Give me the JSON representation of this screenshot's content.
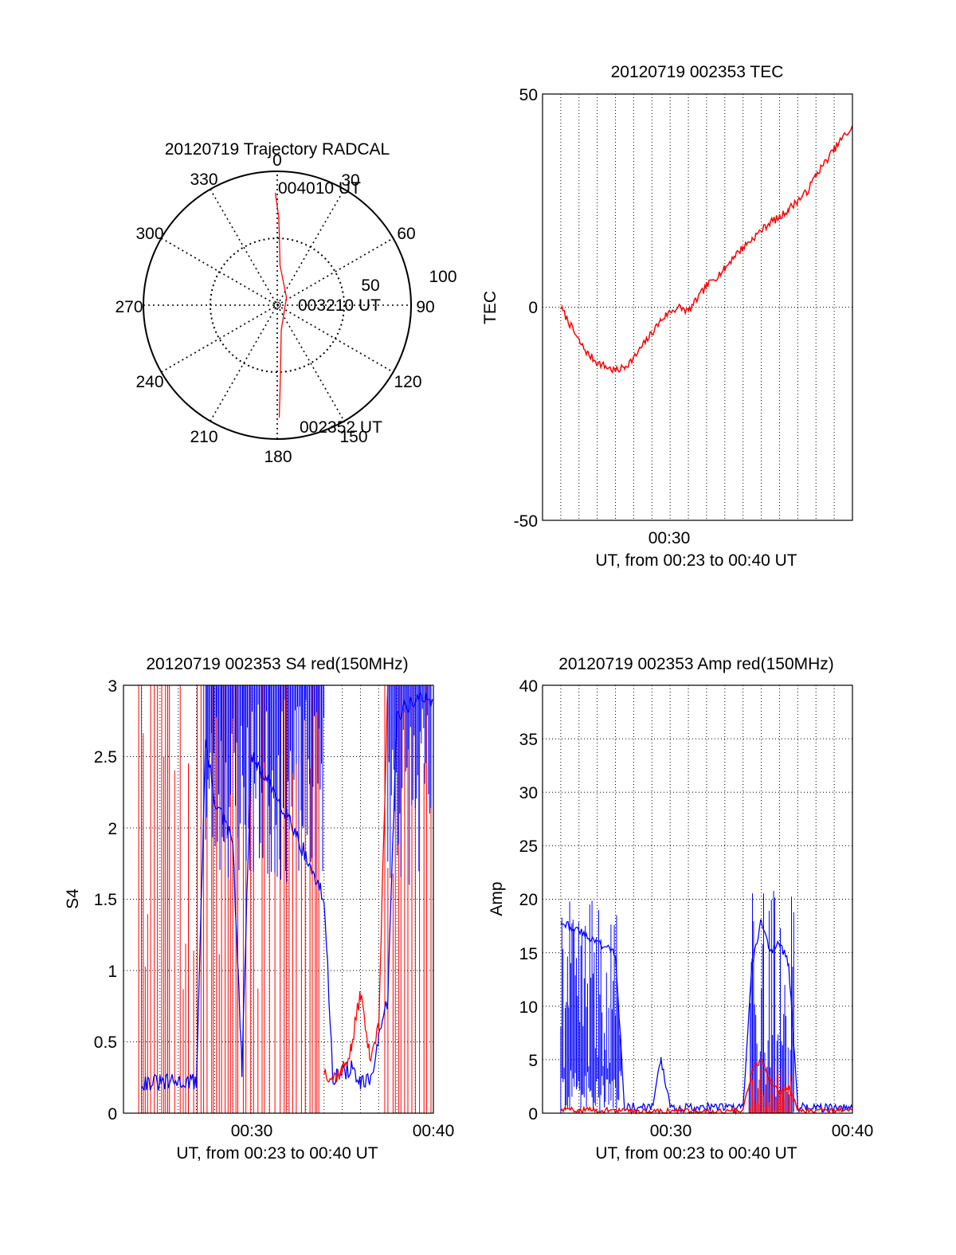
{
  "figure": {
    "background": "#ffffff",
    "red": "#ff0000",
    "blue": "#0000ff"
  },
  "chart_data": [
    {
      "type": "polar",
      "title": "20120719 Trajectory RADCAL",
      "angle_labels": [
        "0",
        "30",
        "60",
        "90",
        "120",
        "150",
        "180",
        "210",
        "240",
        "270",
        "300",
        "330"
      ],
      "radius_labels": [
        "50",
        "100"
      ],
      "start_label": "002352 UT",
      "mid_label": "003210 UT",
      "end_label": "004010 UT",
      "track": {
        "series_color": "#ff0000",
        "points": [
          {
            "az": 179,
            "r": 84
          },
          {
            "az": 178,
            "r": 62
          },
          {
            "az": 176,
            "r": 38
          },
          {
            "az": 171,
            "r": 19
          },
          {
            "az": 50,
            "r": 9
          },
          {
            "az": 4,
            "r": 30
          },
          {
            "az": 2,
            "r": 48
          },
          {
            "az": 1,
            "r": 66
          },
          {
            "az": 359,
            "r": 84
          }
        ]
      }
    },
    {
      "type": "line",
      "title": "20120719 002353 TEC",
      "ylabel": "TEC",
      "xlabel": "UT, from 00:23 to 00:40 UT",
      "xtick_labels": [
        "00:30"
      ],
      "ytick_labels": [
        "-50",
        "0",
        "50"
      ],
      "xlim": [
        "00:23:00",
        "00:40:00"
      ],
      "ylim": [
        -50,
        50
      ],
      "series": [
        {
          "color": "#ff0000",
          "x": [
            "00:24:00",
            "00:24:30",
            "00:25:00",
            "00:25:30",
            "00:26:00",
            "00:26:30",
            "00:27:00",
            "00:27:30",
            "00:28:00",
            "00:28:30",
            "00:29:00",
            "00:29:30",
            "00:30:00",
            "00:30:30",
            "00:31:00",
            "00:31:30",
            "00:32:00",
            "00:32:30",
            "00:33:00",
            "00:33:30",
            "00:34:00",
            "00:34:30",
            "00:35:00",
            "00:35:30",
            "00:36:00",
            "00:36:30",
            "00:37:00",
            "00:37:30",
            "00:38:00",
            "00:38:30",
            "00:39:00",
            "00:39:30",
            "00:40:00"
          ],
          "values": [
            0,
            -4,
            -8,
            -11,
            -13,
            -14,
            -15,
            -14,
            -12,
            -9,
            -6,
            -3,
            -1,
            0,
            -1,
            2,
            5,
            7,
            9,
            12,
            14,
            16,
            18,
            20,
            21,
            23,
            25,
            27,
            31,
            34,
            37,
            40,
            42
          ]
        }
      ]
    },
    {
      "type": "line",
      "title": "20120719 002353 S4 red(150MHz)",
      "ylabel": "S4",
      "xlabel": "UT, from 00:23 to 00:40 UT",
      "xtick_labels": [
        "00:30",
        "00:40"
      ],
      "ytick_labels": [
        "0",
        "0.5",
        "1",
        "1.5",
        "2",
        "2.5",
        "3"
      ],
      "xlim": [
        "00:23:00",
        "00:40:00"
      ],
      "ylim": [
        0,
        3
      ],
      "series": [
        {
          "color": "#0000ff",
          "x": [
            "00:24:00",
            "00:25:00",
            "00:26:00",
            "00:27:00",
            "00:27:30",
            "00:28:00",
            "00:29:00",
            "00:29:30",
            "00:30:00",
            "00:31:00",
            "00:32:00",
            "00:33:00",
            "00:34:00",
            "00:34:30",
            "00:35:00",
            "00:35:30",
            "00:36:00",
            "00:36:30",
            "00:37:00",
            "00:37:30",
            "00:38:00",
            "00:39:00",
            "00:40:00"
          ],
          "values": [
            0.22,
            0.21,
            0.22,
            0.22,
            2.6,
            2.2,
            1.9,
            0.3,
            2.5,
            2.3,
            2.1,
            1.8,
            1.5,
            0.25,
            0.28,
            0.32,
            0.2,
            0.22,
            0.5,
            0.8,
            2.8,
            2.9,
            2.9
          ]
        },
        {
          "color": "#ff0000",
          "x": [
            "00:34:00",
            "00:34:30",
            "00:35:00",
            "00:35:30",
            "00:36:00",
            "00:36:30",
            "00:37:00",
            "00:37:30"
          ],
          "values": [
            0.3,
            0.25,
            0.3,
            0.45,
            0.85,
            0.4,
            0.6,
            3.0
          ]
        }
      ]
    },
    {
      "type": "line",
      "title": "20120719 002353 Amp red(150MHz)",
      "ylabel": "Amp",
      "xlabel": "UT, from 00:23 to 00:40 UT",
      "xtick_labels": [
        "00:30",
        "00:40"
      ],
      "ytick_labels": [
        "0",
        "5",
        "10",
        "15",
        "20",
        "25",
        "30",
        "35",
        "40"
      ],
      "xlim": [
        "00:23:00",
        "00:40:00"
      ],
      "ylim": [
        0,
        40
      ],
      "series": [
        {
          "color": "#0000ff",
          "x": [
            "00:24:00",
            "00:25:00",
            "00:26:00",
            "00:27:00",
            "00:27:30",
            "00:28:00",
            "00:29:00",
            "00:29:30",
            "00:30:00",
            "00:32:00",
            "00:34:00",
            "00:34:30",
            "00:35:00",
            "00:35:30",
            "00:36:00",
            "00:36:30",
            "00:37:00",
            "00:37:30",
            "00:38:00",
            "00:40:00"
          ],
          "values": [
            18,
            17,
            16,
            15,
            0.6,
            0.5,
            0.5,
            5,
            0.5,
            0.6,
            0.5,
            14,
            18,
            15,
            16,
            14,
            0.5,
            0.6,
            0.5,
            0.5
          ]
        },
        {
          "color": "#ff0000",
          "x": [
            "00:24:00",
            "00:26:00",
            "00:28:00",
            "00:30:00",
            "00:32:00",
            "00:34:00",
            "00:34:30",
            "00:35:00",
            "00:35:30",
            "00:36:00",
            "00:36:30",
            "00:37:00",
            "00:40:00"
          ],
          "values": [
            0.3,
            0.3,
            0.2,
            0.2,
            0.2,
            0.2,
            4,
            5,
            3,
            2,
            2.5,
            0.3,
            0.3
          ]
        }
      ]
    }
  ]
}
